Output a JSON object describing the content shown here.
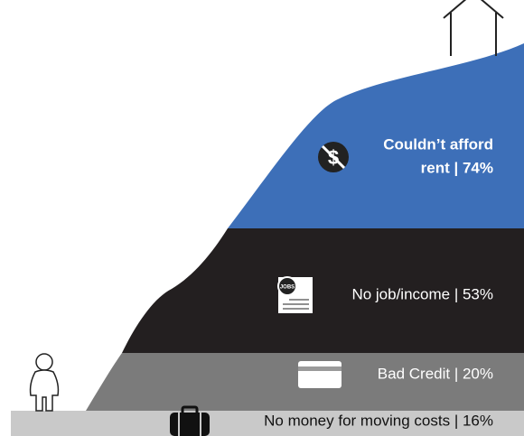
{
  "layers": [
    {
      "lines": [
        "Couldn’t afford",
        "rent | 74%"
      ]
    },
    {
      "lines": [
        "No job/income | 53%"
      ]
    },
    {
      "lines": [
        "Bad Credit | 20%"
      ]
    },
    {
      "lines": [
        "No money for moving costs | 16%"
      ]
    }
  ]
}
